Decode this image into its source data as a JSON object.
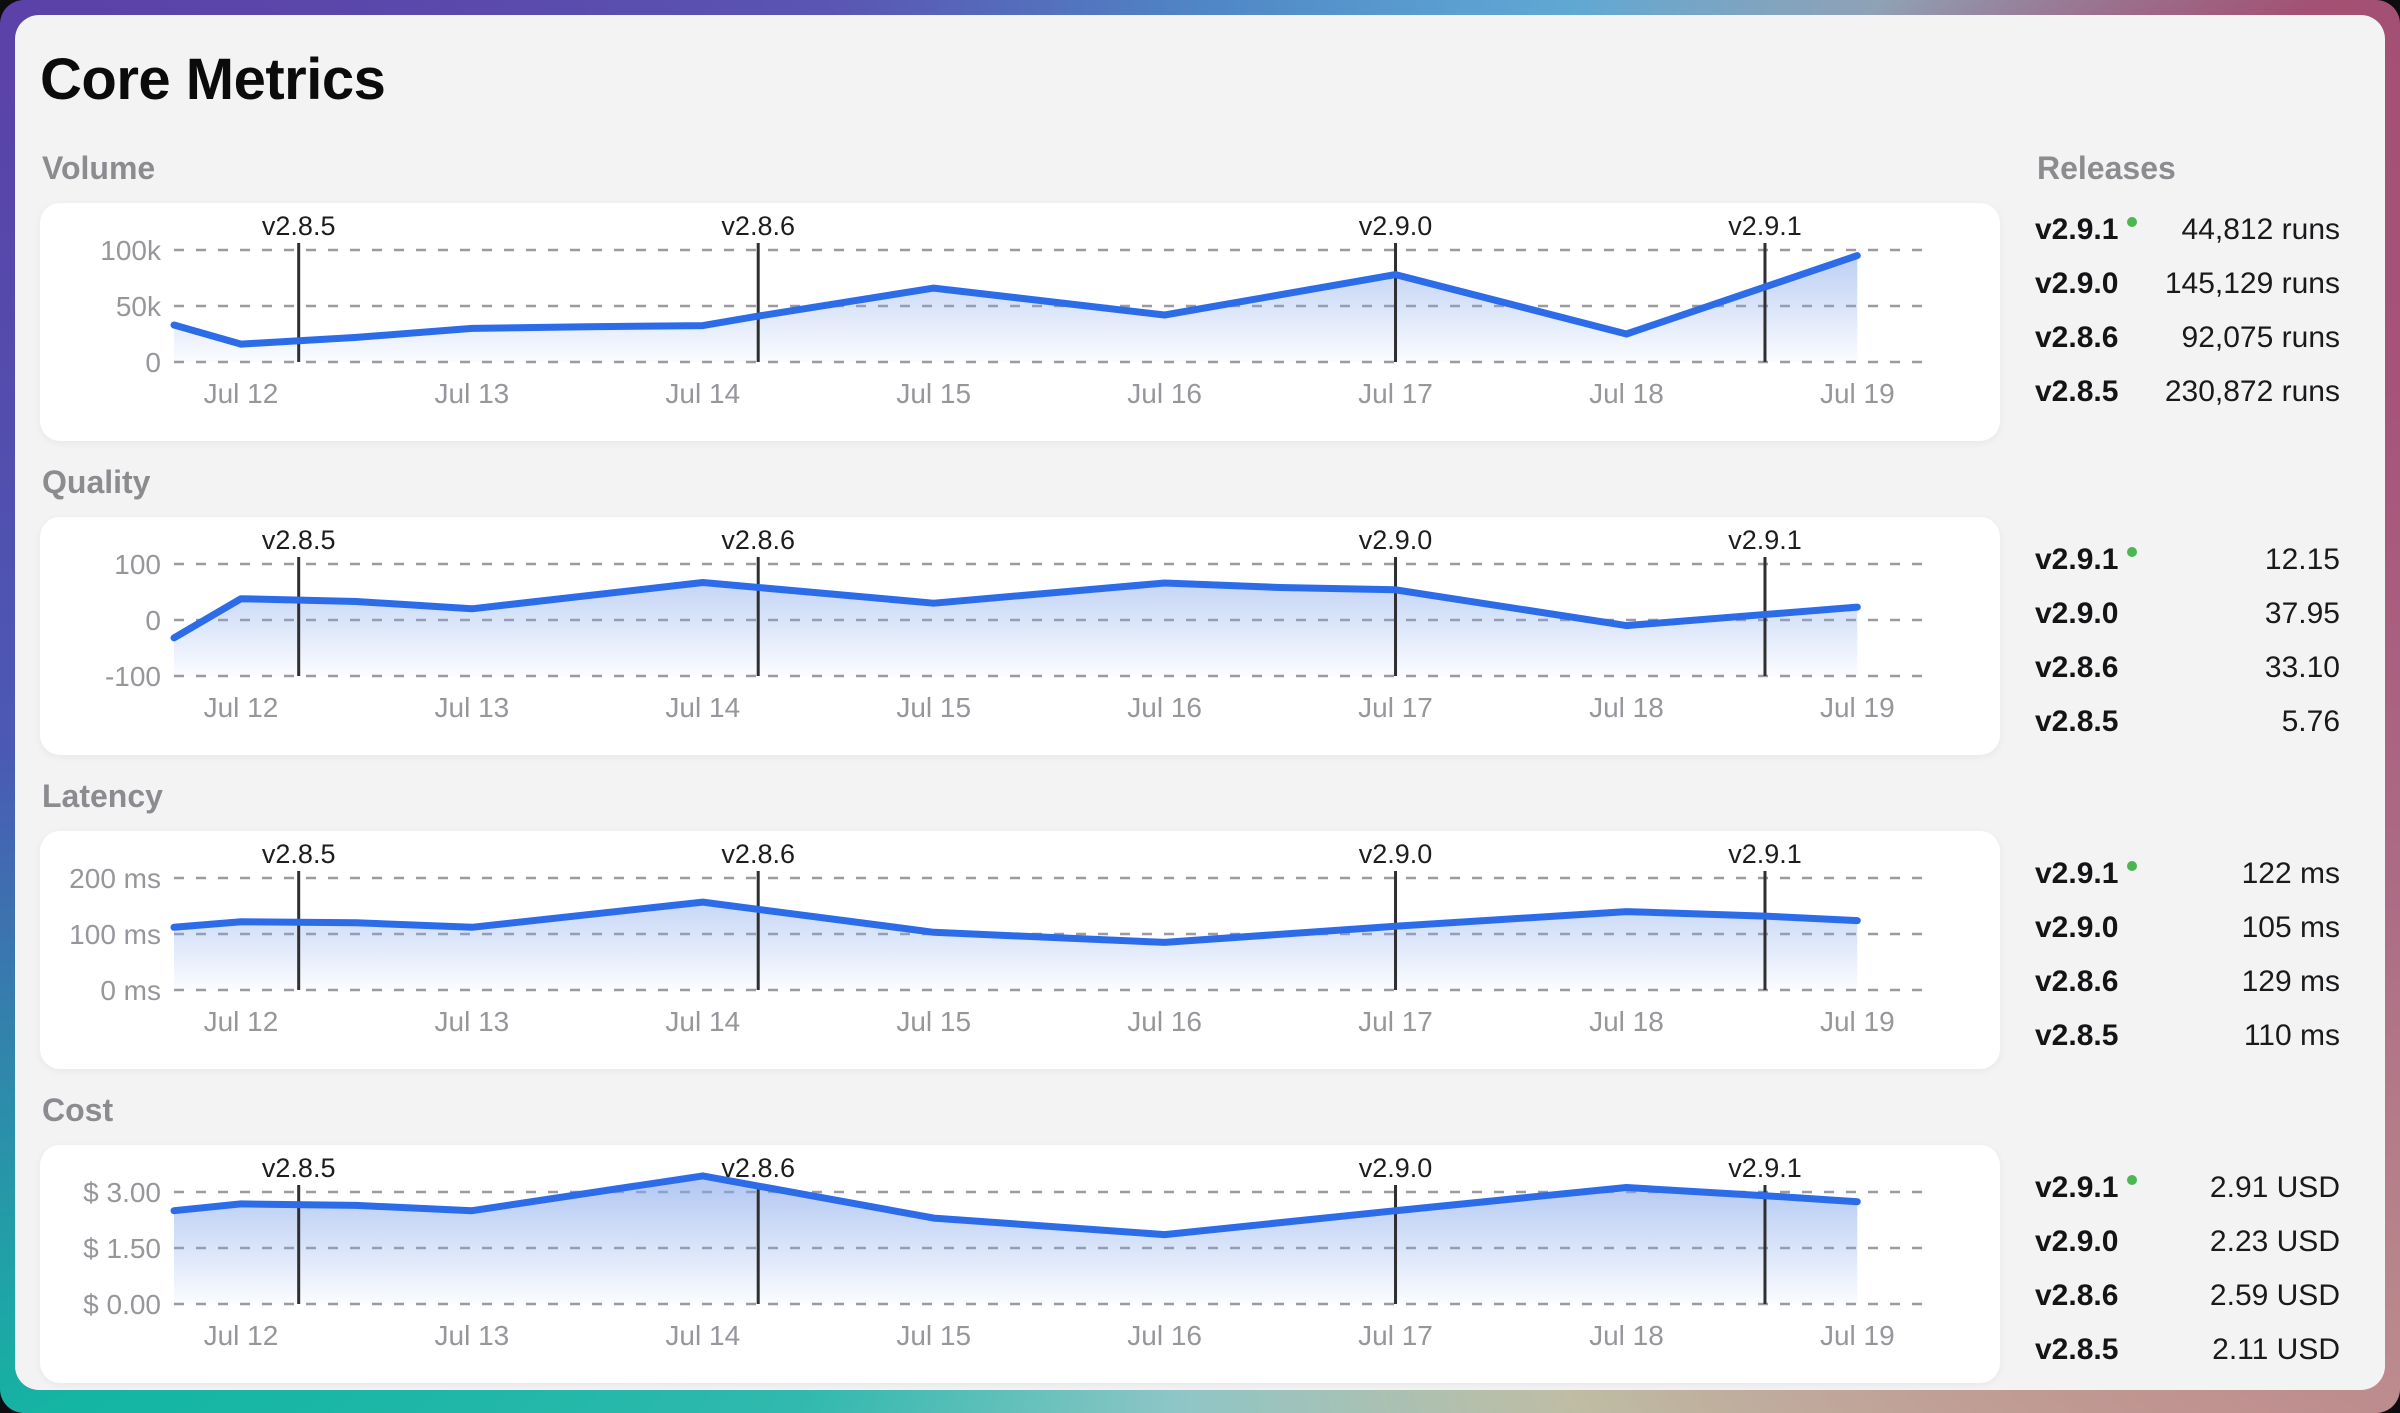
{
  "title": "Core Metrics",
  "releases_panel": {
    "heading": "Releases",
    "latest_dot_color": "#4db551"
  },
  "colors": {
    "line": "#2c6ce8",
    "area_fill": "#83a6eb",
    "grid": "#9a9aa0",
    "marker_line": "#2f2f31"
  },
  "x_ticks": [
    {
      "x": 12,
      "label": "Jul 12"
    },
    {
      "x": 13,
      "label": "Jul 13"
    },
    {
      "x": 14,
      "label": "Jul 14"
    },
    {
      "x": 15,
      "label": "Jul 15"
    },
    {
      "x": 16,
      "label": "Jul 16"
    },
    {
      "x": 17,
      "label": "Jul 17"
    },
    {
      "x": 18,
      "label": "Jul 18"
    },
    {
      "x": 19,
      "label": "Jul 19"
    }
  ],
  "markers": [
    {
      "label": "v2.8.5",
      "x": 12.25
    },
    {
      "label": "v2.8.6",
      "x": 14.24
    },
    {
      "label": "v2.9.0",
      "x": 17.0
    },
    {
      "label": "v2.9.1",
      "x": 18.6
    }
  ],
  "chart_data": [
    {
      "type": "area",
      "title": "Volume",
      "grid": "dashed-horizontal",
      "xlim": [
        11.71,
        19.28
      ],
      "ylim": [
        0,
        100000
      ],
      "y_ticks": [
        {
          "v": 100000,
          "label": "100k"
        },
        {
          "v": 50000,
          "label": "50k"
        },
        {
          "v": 0,
          "label": "0"
        }
      ],
      "points": [
        [
          11.71,
          33000
        ],
        [
          12,
          16000
        ],
        [
          12.5,
          22000
        ],
        [
          13,
          30000
        ],
        [
          13.5,
          31500
        ],
        [
          14,
          32500
        ],
        [
          14.24,
          41000
        ],
        [
          15,
          66000
        ],
        [
          16,
          42000
        ],
        [
          17,
          78000
        ],
        [
          18,
          25000
        ],
        [
          19,
          95000
        ]
      ],
      "releases": [
        {
          "version": "v2.9.1",
          "latest": true,
          "value": "44,812 runs"
        },
        {
          "version": "v2.9.0",
          "latest": false,
          "value": "145,129 runs"
        },
        {
          "version": "v2.8.6",
          "latest": false,
          "value": "92,075 runs"
        },
        {
          "version": "v2.8.5",
          "latest": false,
          "value": "230,872 runs"
        }
      ]
    },
    {
      "type": "area",
      "title": "Quality",
      "grid": "dashed-horizontal",
      "xlim": [
        11.71,
        19.28
      ],
      "ylim": [
        -100,
        100
      ],
      "y_ticks": [
        {
          "v": 100,
          "label": "100"
        },
        {
          "v": 0,
          "label": "0"
        },
        {
          "v": -100,
          "label": "-100"
        }
      ],
      "points": [
        [
          11.71,
          -32
        ],
        [
          12,
          38
        ],
        [
          12.5,
          33
        ],
        [
          13,
          20
        ],
        [
          14,
          67
        ],
        [
          15,
          30
        ],
        [
          16,
          66
        ],
        [
          16.5,
          58
        ],
        [
          17,
          54
        ],
        [
          18,
          -10
        ],
        [
          19,
          23
        ]
      ],
      "releases": [
        {
          "version": "v2.9.1",
          "latest": true,
          "value": "12.15"
        },
        {
          "version": "v2.9.0",
          "latest": false,
          "value": "37.95"
        },
        {
          "version": "v2.8.6",
          "latest": false,
          "value": "33.10"
        },
        {
          "version": "v2.8.5",
          "latest": false,
          "value": "5.76"
        }
      ]
    },
    {
      "type": "area",
      "title": "Latency",
      "grid": "dashed-horizontal",
      "xlim": [
        11.71,
        19.28
      ],
      "ylim": [
        0,
        200
      ],
      "y_ticks": [
        {
          "v": 200,
          "label": "200 ms"
        },
        {
          "v": 100,
          "label": "100 ms"
        },
        {
          "v": 0,
          "label": "0 ms"
        }
      ],
      "points": [
        [
          11.71,
          112
        ],
        [
          12,
          122
        ],
        [
          12.5,
          120
        ],
        [
          13,
          112
        ],
        [
          14,
          157
        ],
        [
          15,
          103
        ],
        [
          16,
          85
        ],
        [
          17,
          114
        ],
        [
          18,
          140
        ],
        [
          18.6,
          132
        ],
        [
          19,
          124
        ]
      ],
      "releases": [
        {
          "version": "v2.9.1",
          "latest": true,
          "value": "122 ms"
        },
        {
          "version": "v2.9.0",
          "latest": false,
          "value": "105 ms"
        },
        {
          "version": "v2.8.6",
          "latest": false,
          "value": "129 ms"
        },
        {
          "version": "v2.8.5",
          "latest": false,
          "value": "110 ms"
        }
      ]
    },
    {
      "type": "area",
      "title": "Cost",
      "grid": "dashed-horizontal",
      "xlim": [
        11.71,
        19.28
      ],
      "ylim": [
        0,
        3
      ],
      "y_ticks": [
        {
          "v": 3,
          "label": "$ 3.00"
        },
        {
          "v": 1.5,
          "label": "$ 1.50"
        },
        {
          "v": 0,
          "label": "$ 0.00"
        }
      ],
      "points": [
        [
          11.71,
          2.5
        ],
        [
          12,
          2.68
        ],
        [
          12.5,
          2.64
        ],
        [
          13,
          2.5
        ],
        [
          14,
          3.43
        ],
        [
          15,
          2.3
        ],
        [
          16,
          1.86
        ],
        [
          17,
          2.5
        ],
        [
          18,
          3.12
        ],
        [
          18.6,
          2.9
        ],
        [
          19,
          2.74
        ]
      ],
      "releases": [
        {
          "version": "v2.9.1",
          "latest": true,
          "value": "2.91 USD"
        },
        {
          "version": "v2.9.0",
          "latest": false,
          "value": "2.23 USD"
        },
        {
          "version": "v2.8.6",
          "latest": false,
          "value": "2.59 USD"
        },
        {
          "version": "v2.8.5",
          "latest": false,
          "value": "2.11 USD"
        }
      ]
    }
  ]
}
